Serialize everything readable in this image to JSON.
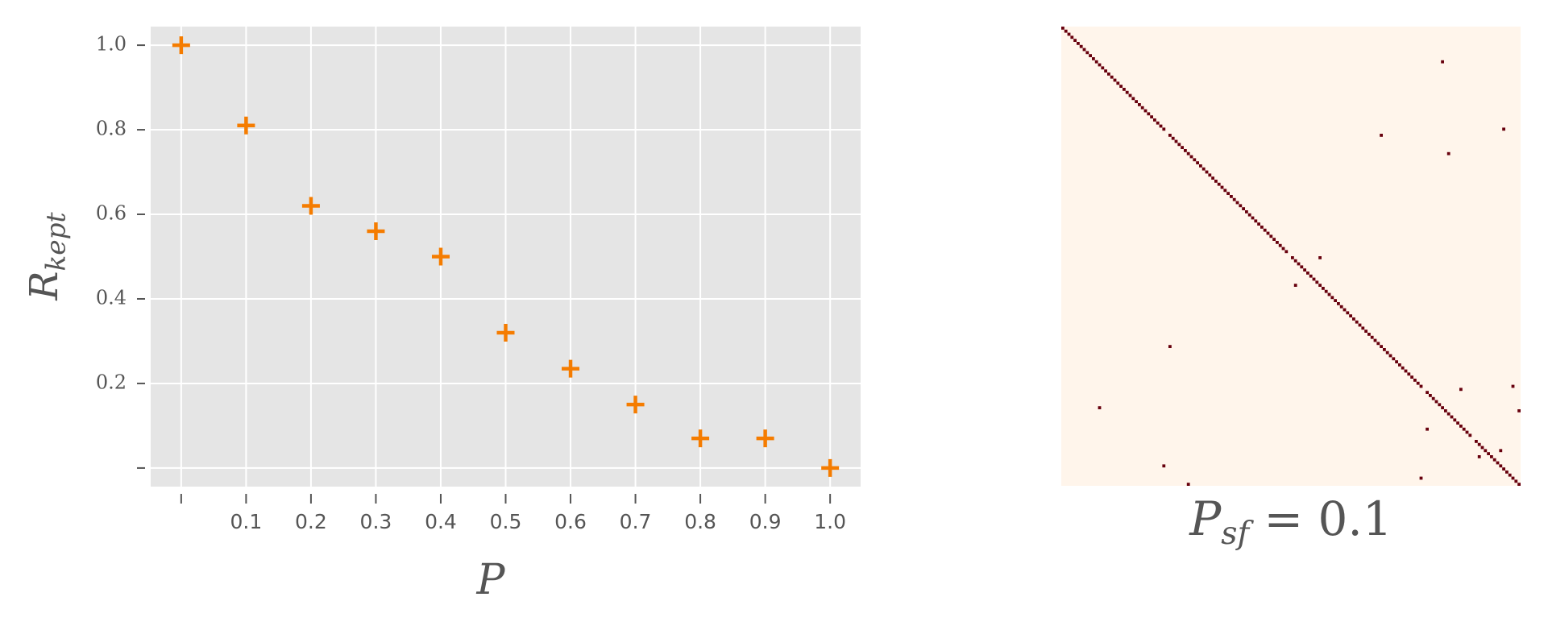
{
  "chart_data": [
    {
      "type": "scatter",
      "xlabel": {
        "base": "P"
      },
      "ylabel": {
        "base": "R",
        "sub": "kept"
      },
      "x": [
        0,
        0.1,
        0.2,
        0.3,
        0.4,
        0.5,
        0.6,
        0.7,
        0.8,
        0.9,
        1.0
      ],
      "series": [
        {
          "name": null,
          "color": "#f57c00",
          "values": [
            1.0,
            0.81,
            0.62,
            0.56,
            0.5,
            0.32,
            0.235,
            0.15,
            0.07,
            0.07,
            0.0
          ]
        }
      ],
      "xlim": [
        -0.047,
        1.047
      ],
      "ylim": [
        -0.044,
        1.044
      ],
      "xticks": [
        {
          "value": 0,
          "label": null
        },
        0.1,
        0.2,
        0.3,
        0.4,
        0.5,
        0.6,
        0.7,
        0.8,
        0.9,
        {
          "value": 1.0,
          "label": "1.0"
        }
      ],
      "yticks": [
        {
          "value": 0,
          "label": null
        },
        0.2,
        0.4,
        0.6,
        0.8,
        {
          "value": 1.0,
          "label": "1.0"
        }
      ],
      "grid": true
    },
    {
      "type": "matrix",
      "title": {
        "base": "P",
        "sub": "sf",
        "rest": " = 0.1"
      },
      "size": 150,
      "color": "#67000d",
      "background": "#fff5eb",
      "diagonal": [
        0,
        1,
        2,
        3,
        4,
        5,
        6,
        7,
        8,
        9,
        10,
        11,
        12,
        13,
        14,
        15,
        16,
        17,
        18,
        19,
        20,
        21,
        22,
        23,
        24,
        25,
        26,
        27,
        28,
        29,
        30,
        31,
        32,
        33,
        35,
        36,
        37,
        38,
        39,
        40,
        41,
        42,
        43,
        44,
        45,
        46,
        47,
        48,
        49,
        50,
        51,
        52,
        53,
        54,
        55,
        56,
        57,
        58,
        59,
        60,
        61,
        62,
        63,
        64,
        65,
        66,
        67,
        68,
        69,
        70,
        71,
        72,
        73,
        75,
        76,
        77,
        78,
        79,
        80,
        81,
        82,
        83,
        84,
        85,
        86,
        87,
        88,
        89,
        90,
        91,
        92,
        93,
        94,
        95,
        96,
        97,
        98,
        99,
        100,
        101,
        102,
        103,
        104,
        105,
        106,
        107,
        108,
        109,
        110,
        111,
        112,
        113,
        114,
        115,
        116,
        117,
        119,
        120,
        121,
        122,
        123,
        124,
        125,
        126,
        127,
        128,
        129,
        130,
        131,
        132,
        133,
        135,
        136,
        137,
        138,
        139,
        140,
        141,
        142,
        143,
        144,
        145,
        146,
        147,
        148,
        149
      ],
      "points": [
        [
          11,
          124
        ],
        [
          35,
          104
        ],
        [
          33,
          144
        ],
        [
          41,
          126
        ],
        [
          75,
          84
        ],
        [
          84,
          76
        ],
        [
          104,
          35
        ],
        [
          118,
          130
        ],
        [
          117,
          147
        ],
        [
          124,
          12
        ],
        [
          125,
          149
        ],
        [
          131,
          119
        ],
        [
          143,
          33
        ],
        [
          147,
          117
        ],
        [
          149,
          41
        ],
        [
          140,
          136
        ],
        [
          138,
          143
        ]
      ]
    }
  ]
}
